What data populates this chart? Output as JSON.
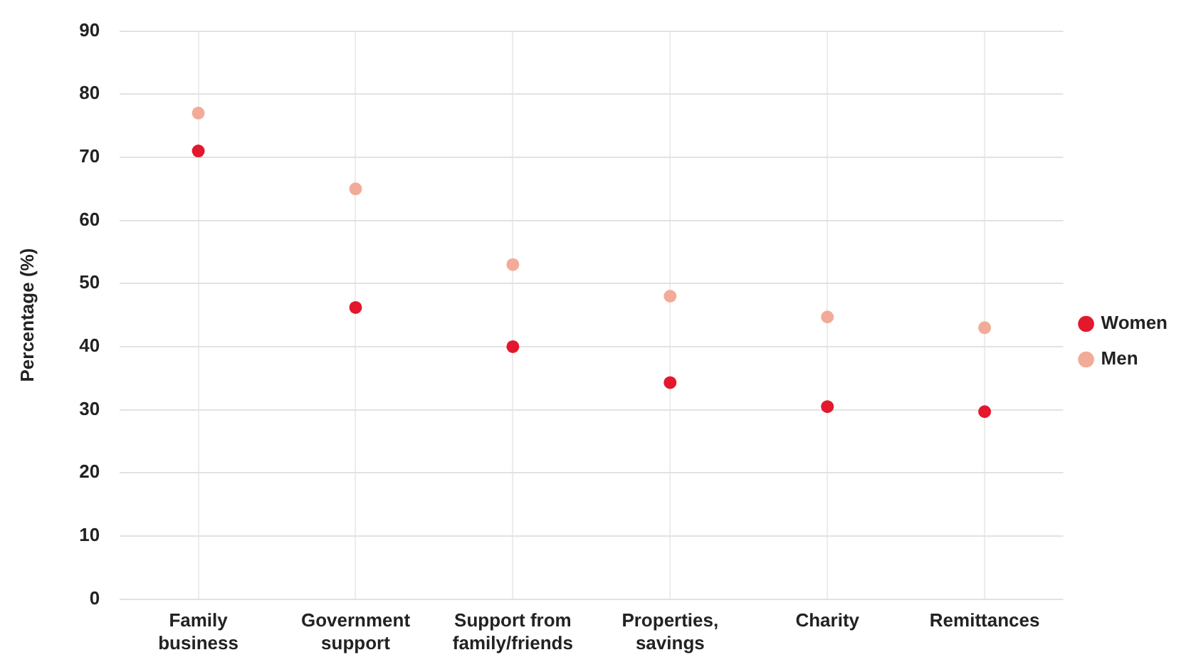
{
  "chart_data": {
    "type": "scatter",
    "ylabel": "Percentage (%)",
    "categories": [
      "Family business",
      "Government support",
      "Support from family/friends",
      "Properties, savings",
      "Charity",
      "Remittances"
    ],
    "series": [
      {
        "name": "Women",
        "color": "#e3182d",
        "values": [
          71,
          46.2,
          40,
          34.3,
          30.5,
          29.7
        ]
      },
      {
        "name": "Men",
        "color": "#f2ab98",
        "values": [
          77,
          65,
          53,
          48,
          44.7,
          43
        ]
      }
    ],
    "ylim": [
      0,
      90
    ],
    "yticks": [
      0,
      10,
      20,
      30,
      40,
      50,
      60,
      70,
      80,
      90
    ],
    "grid": true,
    "legend": "right",
    "marker": "circle"
  }
}
